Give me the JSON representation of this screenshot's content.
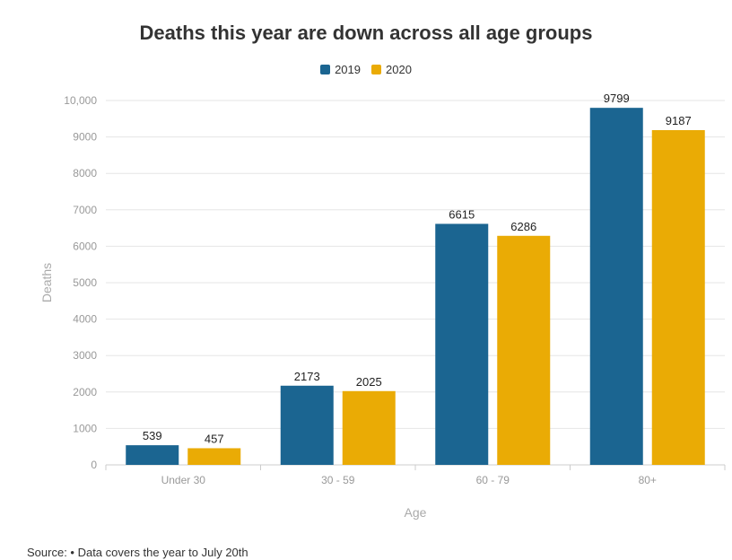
{
  "page": {
    "source": "Source: • Data covers the year to July 20th"
  },
  "chart_data": {
    "type": "bar",
    "title": "Deaths this year are down across all age groups",
    "xlabel": "Age",
    "ylabel": "Deaths",
    "categories": [
      "Under 30",
      "30 - 59",
      "60 - 79",
      "80+"
    ],
    "series": [
      {
        "name": "2019",
        "color": "#1b6591",
        "values": [
          539,
          2173,
          6615,
          9799
        ]
      },
      {
        "name": "2020",
        "color": "#eaab05",
        "values": [
          457,
          2025,
          6286,
          9187
        ]
      }
    ],
    "ylim": [
      0,
      10000
    ],
    "yticks": [
      0,
      1000,
      2000,
      3000,
      4000,
      5000,
      6000,
      7000,
      8000,
      9000,
      10000
    ],
    "ytick_labels": [
      "0",
      "1000",
      "2000",
      "3000",
      "4000",
      "5000",
      "6000",
      "7000",
      "8000",
      "9000",
      "10,000"
    ],
    "grid": true,
    "legend_position": "top-center"
  }
}
